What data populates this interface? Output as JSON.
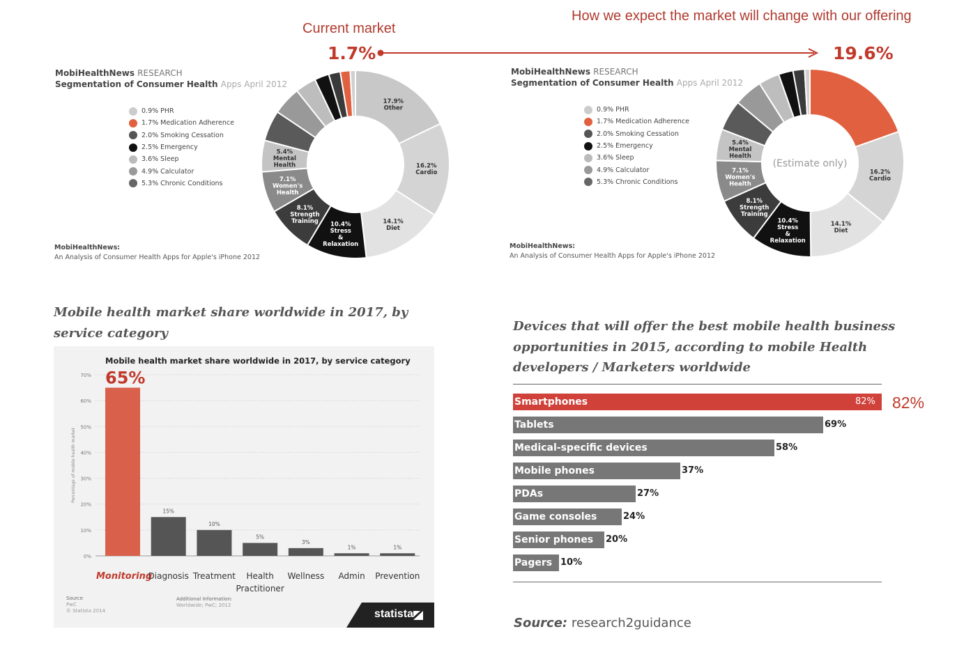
{
  "header": {
    "current_label": "Current market",
    "current_pct": "1.7%",
    "expected_label": "How we expect the market will change with our offering",
    "expected_pct": "19.6%"
  },
  "pies": [
    {
      "title_brand": "MobiHealthNews",
      "title_research": "RESEARCH",
      "title_line2": "Segmentation of Consumer Health",
      "title_line2_light": "Apps April 2012",
      "source_title": "MobiHealthNews:",
      "source_text": "An Analysis of Consumer Health Apps for Apple's iPhone 2012",
      "center_text": "",
      "legend": [
        {
          "label": "0.9% PHR",
          "color": "#cccccc"
        },
        {
          "label": "1.7% Medication Adherence",
          "color": "#e0603f"
        },
        {
          "label": "2.0% Smoking Cessation",
          "color": "#555555"
        },
        {
          "label": "2.5% Emergency",
          "color": "#111111"
        },
        {
          "label": "3.6% Sleep",
          "color": "#bbbbbb"
        },
        {
          "label": "4.9% Calculator",
          "color": "#999999"
        },
        {
          "label": "5.3% Chronic Conditions",
          "color": "#666666"
        }
      ]
    },
    {
      "title_brand": "MobiHealthNews",
      "title_research": "RESEARCH",
      "title_line2": "Segmentation of Consumer Health",
      "title_line2_light": "Apps April 2012",
      "source_title": "MobiHealthNews:",
      "source_text": "An Analysis of Consumer Health Apps for Apple's iPhone 2012",
      "center_text": "(Estimate only)",
      "legend": [
        {
          "label": "0.9% PHR",
          "color": "#cccccc"
        },
        {
          "label": "1.7% Medication Adherence",
          "color": "#e0603f"
        },
        {
          "label": "2.0% Smoking Cessation",
          "color": "#555555"
        },
        {
          "label": "2.5% Emergency",
          "color": "#111111"
        },
        {
          "label": "3.6% Sleep",
          "color": "#bbbbbb"
        },
        {
          "label": "4.9% Calculator",
          "color": "#999999"
        },
        {
          "label": "5.3% Chronic Conditions",
          "color": "#666666"
        }
      ]
    }
  ],
  "statista": {
    "section_title_1": "Mobile health market share worldwide in 2017, by",
    "section_title_2": "service category",
    "inner_title": "Mobile health market share worldwide in 2017, by service category",
    "ylabel": "Percentage of mobile health market",
    "source_label": "Source",
    "source_value": "PwC",
    "copyright": "© Statista 2014",
    "additional_label": "Additional Information:",
    "additional_value": "Worldwide; PwC; 2012",
    "brand": "statista",
    "highlight_value": "65%"
  },
  "devices": {
    "section_title_1": "Devices that will offer the best mobile health business",
    "section_title_2": "opportunities in 2015, according to mobile Health",
    "section_title_3": "developers / Marketers worldwide",
    "highlight_value": "82%",
    "source_label": "Source:",
    "source_value": "research2guidance"
  },
  "chart_data": [
    {
      "type": "pie",
      "title": "Segmentation of Consumer Health Apps April 2012 (Current market)",
      "categories": [
        "Other",
        "Cardio",
        "Diet",
        "Stress & Relaxation",
        "Strength Training",
        "Women's Health",
        "Mental Health",
        "Chronic Conditions",
        "Calculator",
        "Sleep",
        "Emergency",
        "Smoking Cessation",
        "Medication Adherence",
        "PHR"
      ],
      "values": [
        17.9,
        16.2,
        14.1,
        10.4,
        8.1,
        7.1,
        5.4,
        5.3,
        4.9,
        3.6,
        2.5,
        2.0,
        1.7,
        0.9
      ],
      "colors": [
        "#c8c8c8",
        "#d4d4d4",
        "#e2e2e2",
        "#111111",
        "#3c3c3c",
        "#8a8a8a",
        "#c4c4c4",
        "#5a5a5a",
        "#999999",
        "#bdbdbd",
        "#111111",
        "#3a3a3a",
        "#e0603f",
        "#d0d0d0"
      ],
      "slice_labels": [
        {
          "pct": "17.9%",
          "name": "Other",
          "dark": false
        },
        {
          "pct": "16.2%",
          "name": "Cardio",
          "dark": false
        },
        {
          "pct": "14.1%",
          "name": "Diet",
          "dark": false
        },
        {
          "pct": "10.4%",
          "name": "Stress & Relaxation",
          "dark": true
        },
        {
          "pct": "8.1%",
          "name": "Strength Training",
          "dark": true
        },
        {
          "pct": "7.1%",
          "name": "Women's Health",
          "dark": true
        },
        {
          "pct": "5.4%",
          "name": "Mental Health",
          "dark": false
        }
      ]
    },
    {
      "type": "pie",
      "title": "Segmentation of Consumer Health Apps April 2012 (Expected, estimate only)",
      "categories": [
        "Medication Adherence",
        "Cardio",
        "Diet",
        "Stress & Relaxation",
        "Strength Training",
        "Women's Health",
        "Mental Health",
        "Chronic Conditions",
        "Calculator",
        "Sleep",
        "Emergency",
        "Smoking Cessation",
        "PHR"
      ],
      "values": [
        19.6,
        16.2,
        14.1,
        10.4,
        8.1,
        7.1,
        5.4,
        5.3,
        4.9,
        3.6,
        2.5,
        2.0,
        0.9
      ],
      "colors": [
        "#e0603f",
        "#d4d4d4",
        "#e2e2e2",
        "#111111",
        "#3c3c3c",
        "#8a8a8a",
        "#c4c4c4",
        "#5a5a5a",
        "#999999",
        "#bdbdbd",
        "#111111",
        "#3a3a3a",
        "#d0d0d0"
      ],
      "slice_labels": [
        {
          "pct": "",
          "name": "",
          "dark": false
        },
        {
          "pct": "16.2%",
          "name": "Cardio",
          "dark": false
        },
        {
          "pct": "14.1%",
          "name": "Diet",
          "dark": false
        },
        {
          "pct": "10.4%",
          "name": "Stress & Relaxation",
          "dark": true
        },
        {
          "pct": "8.1%",
          "name": "Strength Training",
          "dark": true
        },
        {
          "pct": "7.1%",
          "name": "Women's Health",
          "dark": true
        },
        {
          "pct": "5.4%",
          "name": "Mental Health",
          "dark": false
        }
      ]
    },
    {
      "type": "bar",
      "title": "Mobile health market share worldwide in 2017, by service category",
      "categories": [
        "Monitoring",
        "Diagnosis",
        "Treatment",
        "Health Practitioner",
        "Wellness",
        "Admin",
        "Prevention"
      ],
      "values": [
        65,
        15,
        10,
        5,
        3,
        1,
        1
      ],
      "value_labels": [
        "65%",
        "15%",
        "10%",
        "5%",
        "3%",
        "1%",
        "1%"
      ],
      "ylabel": "Percentage of mobile health market",
      "ylim": [
        0,
        70
      ],
      "yticks": [
        "0%",
        "10%",
        "20%",
        "30%",
        "40%",
        "50%",
        "60%",
        "70%"
      ],
      "highlight_color": "#d9604a",
      "bar_color": "#555555"
    },
    {
      "type": "bar",
      "orientation": "horizontal",
      "title": "Devices that will offer the best mobile health business opportunities in 2015",
      "categories": [
        "Smartphones",
        "Tablets",
        "Medical-specific devices",
        "Mobile phones",
        "PDAs",
        "Game consoles",
        "Senior phones",
        "Pagers"
      ],
      "values": [
        82,
        69,
        58,
        37,
        27,
        24,
        20,
        10
      ],
      "value_labels": [
        "82%",
        "69%",
        "58%",
        "37%",
        "27%",
        "24%",
        "20%",
        "10%"
      ],
      "xlim": [
        0,
        82
      ],
      "highlight_color": "#d0413a",
      "bar_color": "#777777"
    }
  ]
}
